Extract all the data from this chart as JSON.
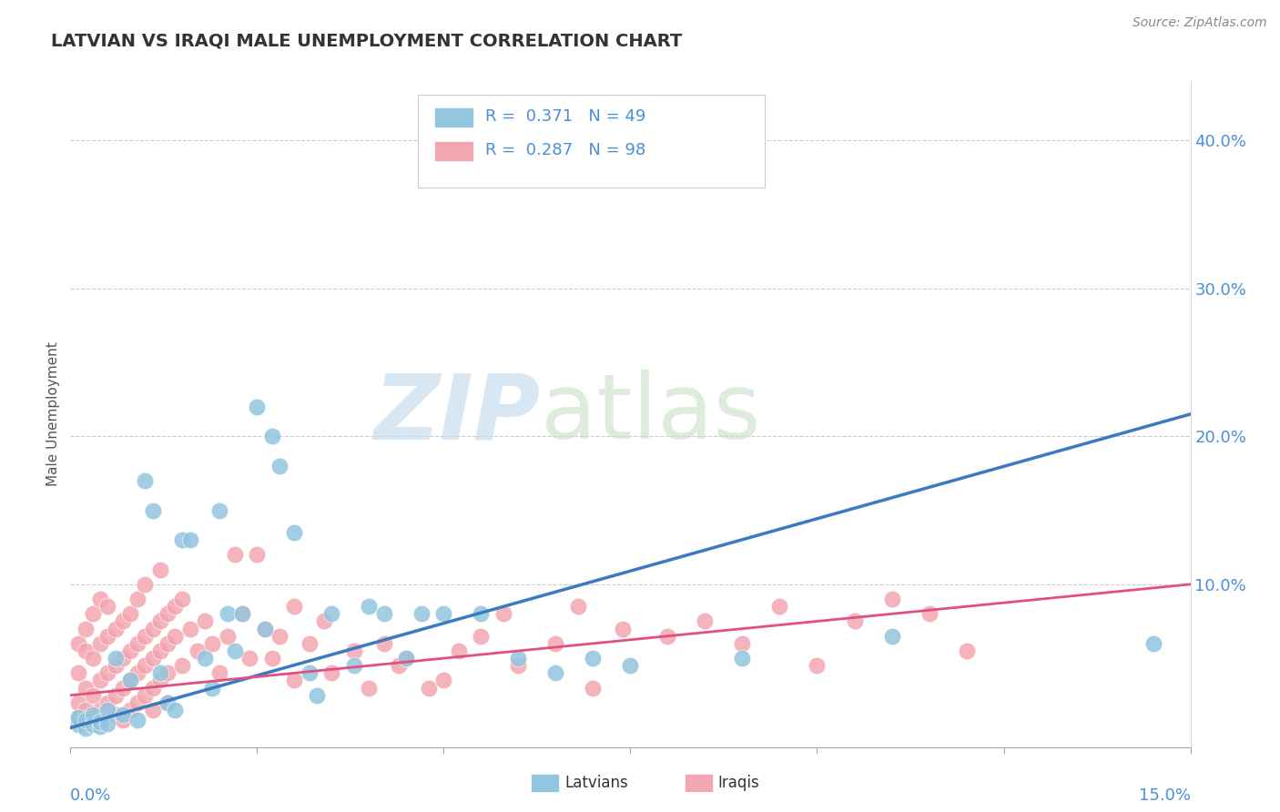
{
  "title": "LATVIAN VS IRAQI MALE UNEMPLOYMENT CORRELATION CHART",
  "source": "Source: ZipAtlas.com",
  "ylabel": "Male Unemployment",
  "ytick_vals": [
    0.0,
    0.1,
    0.2,
    0.3,
    0.4
  ],
  "ytick_labels": [
    "",
    "10.0%",
    "20.0%",
    "30.0%",
    "40.0%"
  ],
  "xlim": [
    0.0,
    0.15
  ],
  "ylim": [
    -0.01,
    0.44
  ],
  "latvian_R": 0.371,
  "latvian_N": 49,
  "iraqi_R": 0.287,
  "iraqi_N": 98,
  "latvian_color": "#92c5de",
  "iraqi_color": "#f4a6b0",
  "latvian_line_color": "#3a7abf",
  "iraqi_line_color": "#e05080",
  "latvian_line": [
    [
      0.0,
      0.003
    ],
    [
      0.15,
      0.215
    ]
  ],
  "iraqi_line": [
    [
      0.0,
      0.025
    ],
    [
      0.15,
      0.1
    ]
  ],
  "latvian_scatter": [
    [
      0.001,
      0.005
    ],
    [
      0.001,
      0.01
    ],
    [
      0.002,
      0.003
    ],
    [
      0.002,
      0.008
    ],
    [
      0.003,
      0.005
    ],
    [
      0.003,
      0.012
    ],
    [
      0.004,
      0.004
    ],
    [
      0.004,
      0.007
    ],
    [
      0.005,
      0.015
    ],
    [
      0.005,
      0.006
    ],
    [
      0.006,
      0.05
    ],
    [
      0.007,
      0.012
    ],
    [
      0.008,
      0.035
    ],
    [
      0.009,
      0.008
    ],
    [
      0.01,
      0.17
    ],
    [
      0.011,
      0.15
    ],
    [
      0.012,
      0.04
    ],
    [
      0.013,
      0.02
    ],
    [
      0.014,
      0.015
    ],
    [
      0.015,
      0.13
    ],
    [
      0.016,
      0.13
    ],
    [
      0.018,
      0.05
    ],
    [
      0.019,
      0.03
    ],
    [
      0.02,
      0.15
    ],
    [
      0.021,
      0.08
    ],
    [
      0.022,
      0.055
    ],
    [
      0.023,
      0.08
    ],
    [
      0.025,
      0.22
    ],
    [
      0.026,
      0.07
    ],
    [
      0.027,
      0.2
    ],
    [
      0.028,
      0.18
    ],
    [
      0.03,
      0.135
    ],
    [
      0.032,
      0.04
    ],
    [
      0.033,
      0.025
    ],
    [
      0.035,
      0.08
    ],
    [
      0.038,
      0.045
    ],
    [
      0.04,
      0.085
    ],
    [
      0.042,
      0.08
    ],
    [
      0.045,
      0.05
    ],
    [
      0.047,
      0.08
    ],
    [
      0.05,
      0.08
    ],
    [
      0.055,
      0.08
    ],
    [
      0.06,
      0.05
    ],
    [
      0.065,
      0.04
    ],
    [
      0.07,
      0.05
    ],
    [
      0.075,
      0.045
    ],
    [
      0.09,
      0.05
    ],
    [
      0.11,
      0.065
    ],
    [
      0.145,
      0.06
    ]
  ],
  "iraqi_scatter": [
    [
      0.001,
      0.02
    ],
    [
      0.001,
      0.04
    ],
    [
      0.001,
      0.06
    ],
    [
      0.001,
      0.01
    ],
    [
      0.002,
      0.03
    ],
    [
      0.002,
      0.07
    ],
    [
      0.002,
      0.015
    ],
    [
      0.002,
      0.055
    ],
    [
      0.003,
      0.025
    ],
    [
      0.003,
      0.05
    ],
    [
      0.003,
      0.08
    ],
    [
      0.003,
      0.01
    ],
    [
      0.004,
      0.035
    ],
    [
      0.004,
      0.06
    ],
    [
      0.004,
      0.015
    ],
    [
      0.004,
      0.09
    ],
    [
      0.005,
      0.04
    ],
    [
      0.005,
      0.065
    ],
    [
      0.005,
      0.02
    ],
    [
      0.005,
      0.085
    ],
    [
      0.006,
      0.045
    ],
    [
      0.006,
      0.07
    ],
    [
      0.006,
      0.025
    ],
    [
      0.006,
      0.012
    ],
    [
      0.007,
      0.05
    ],
    [
      0.007,
      0.03
    ],
    [
      0.007,
      0.075
    ],
    [
      0.007,
      0.008
    ],
    [
      0.008,
      0.055
    ],
    [
      0.008,
      0.035
    ],
    [
      0.008,
      0.015
    ],
    [
      0.008,
      0.08
    ],
    [
      0.009,
      0.06
    ],
    [
      0.009,
      0.04
    ],
    [
      0.009,
      0.02
    ],
    [
      0.009,
      0.09
    ],
    [
      0.01,
      0.065
    ],
    [
      0.01,
      0.045
    ],
    [
      0.01,
      0.025
    ],
    [
      0.01,
      0.1
    ],
    [
      0.011,
      0.07
    ],
    [
      0.011,
      0.05
    ],
    [
      0.011,
      0.03
    ],
    [
      0.011,
      0.015
    ],
    [
      0.012,
      0.075
    ],
    [
      0.012,
      0.055
    ],
    [
      0.012,
      0.035
    ],
    [
      0.012,
      0.11
    ],
    [
      0.013,
      0.08
    ],
    [
      0.013,
      0.06
    ],
    [
      0.013,
      0.04
    ],
    [
      0.013,
      0.02
    ],
    [
      0.014,
      0.085
    ],
    [
      0.014,
      0.065
    ],
    [
      0.015,
      0.09
    ],
    [
      0.015,
      0.045
    ],
    [
      0.016,
      0.07
    ],
    [
      0.017,
      0.055
    ],
    [
      0.018,
      0.075
    ],
    [
      0.019,
      0.06
    ],
    [
      0.02,
      0.04
    ],
    [
      0.021,
      0.065
    ],
    [
      0.022,
      0.12
    ],
    [
      0.023,
      0.08
    ],
    [
      0.024,
      0.05
    ],
    [
      0.025,
      0.12
    ],
    [
      0.026,
      0.07
    ],
    [
      0.027,
      0.05
    ],
    [
      0.028,
      0.065
    ],
    [
      0.03,
      0.085
    ],
    [
      0.03,
      0.035
    ],
    [
      0.032,
      0.06
    ],
    [
      0.034,
      0.075
    ],
    [
      0.035,
      0.04
    ],
    [
      0.038,
      0.055
    ],
    [
      0.04,
      0.03
    ],
    [
      0.042,
      0.06
    ],
    [
      0.044,
      0.045
    ],
    [
      0.045,
      0.05
    ],
    [
      0.048,
      0.03
    ],
    [
      0.05,
      0.035
    ],
    [
      0.052,
      0.055
    ],
    [
      0.055,
      0.065
    ],
    [
      0.058,
      0.08
    ],
    [
      0.06,
      0.045
    ],
    [
      0.065,
      0.06
    ],
    [
      0.068,
      0.085
    ],
    [
      0.07,
      0.03
    ],
    [
      0.074,
      0.07
    ],
    [
      0.08,
      0.065
    ],
    [
      0.085,
      0.075
    ],
    [
      0.09,
      0.06
    ],
    [
      0.095,
      0.085
    ],
    [
      0.1,
      0.045
    ],
    [
      0.105,
      0.075
    ],
    [
      0.11,
      0.09
    ],
    [
      0.115,
      0.08
    ],
    [
      0.12,
      0.055
    ]
  ]
}
